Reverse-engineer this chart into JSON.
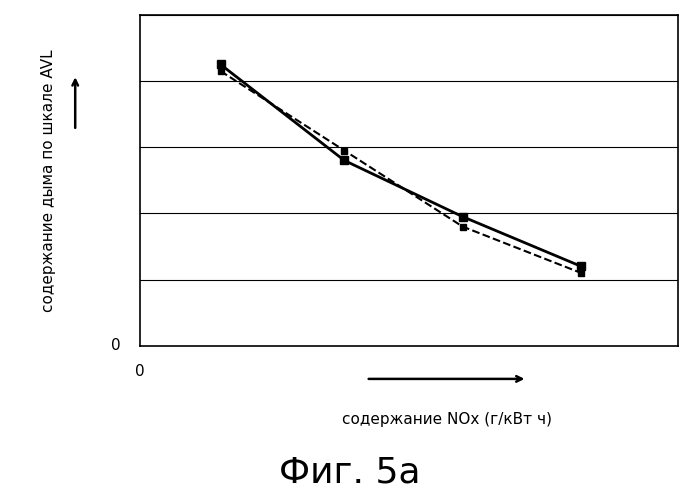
{
  "title": "Фиг. 5а",
  "xlabel": "содержание NOx (г/кВт ч)",
  "ylabel": "содержание дыма по шкале AVL",
  "background_color": "#ffffff",
  "solid_line": {
    "x": [
      1.5,
      3.8,
      6.0,
      8.2
    ],
    "y": [
      8.5,
      5.6,
      3.9,
      2.4
    ],
    "color": "#000000",
    "linewidth": 2.0,
    "marker": "s",
    "markersize": 6,
    "linestyle": "-"
  },
  "dashed_line": {
    "x": [
      1.5,
      3.8,
      6.0,
      8.2
    ],
    "y": [
      8.3,
      5.9,
      3.6,
      2.2
    ],
    "color": "#000000",
    "linewidth": 1.5,
    "marker": "s",
    "markersize": 5,
    "linestyle": "--"
  },
  "xlim": [
    0,
    10
  ],
  "ylim": [
    0,
    10
  ],
  "figsize": [
    6.99,
    4.94
  ],
  "dpi": 100,
  "title_fontsize": 26,
  "axis_label_fontsize": 11,
  "num_hgridlines": 5
}
